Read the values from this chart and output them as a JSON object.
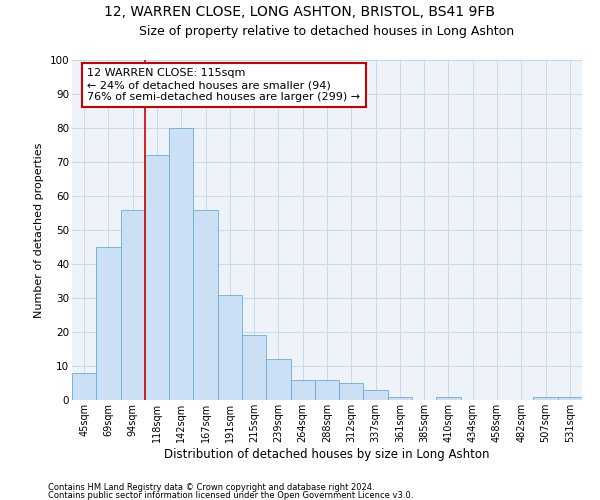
{
  "title": "12, WARREN CLOSE, LONG ASHTON, BRISTOL, BS41 9FB",
  "subtitle": "Size of property relative to detached houses in Long Ashton",
  "xlabel": "Distribution of detached houses by size in Long Ashton",
  "ylabel": "Number of detached properties",
  "categories": [
    "45sqm",
    "69sqm",
    "94sqm",
    "118sqm",
    "142sqm",
    "167sqm",
    "191sqm",
    "215sqm",
    "239sqm",
    "264sqm",
    "288sqm",
    "312sqm",
    "337sqm",
    "361sqm",
    "385sqm",
    "410sqm",
    "434sqm",
    "458sqm",
    "482sqm",
    "507sqm",
    "531sqm"
  ],
  "values": [
    8,
    45,
    56,
    72,
    80,
    56,
    31,
    19,
    12,
    6,
    6,
    5,
    3,
    1,
    0,
    1,
    0,
    0,
    0,
    1,
    1
  ],
  "bar_color": "#cce0f5",
  "bar_edge_color": "#6aaed6",
  "grid_color": "#c8d8ea",
  "background_color": "#ffffff",
  "plot_bg_color": "#eef3fa",
  "red_line_x": 3.0,
  "annotation_text_line1": "12 WARREN CLOSE: 115sqm",
  "annotation_text_line2": "← 24% of detached houses are smaller (94)",
  "annotation_text_line3": "76% of semi-detached houses are larger (299) →",
  "annotation_box_color": "#ffffff",
  "annotation_box_edge": "#cc0000",
  "red_line_color": "#cc0000",
  "footer1": "Contains HM Land Registry data © Crown copyright and database right 2024.",
  "footer2": "Contains public sector information licensed under the Open Government Licence v3.0.",
  "ylim": [
    0,
    100
  ],
  "title_fontsize": 10,
  "subtitle_fontsize": 9,
  "tick_fontsize": 7,
  "ylabel_fontsize": 8,
  "xlabel_fontsize": 8.5,
  "annotation_fontsize": 8,
  "footer_fontsize": 6
}
